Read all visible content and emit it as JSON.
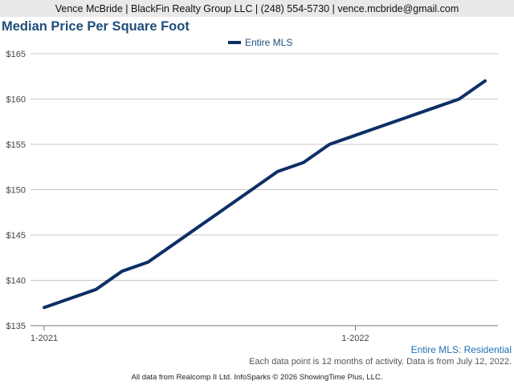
{
  "header": {
    "contact": "Vence McBride | BlackFin Realty Group LLC | (248) 554-5730 | vence.mcbride@gmail.com"
  },
  "chart_data": {
    "type": "line",
    "title": "Median Price Per Square Foot",
    "x": [
      "2021-01",
      "2021-02",
      "2021-03",
      "2021-04",
      "2021-05",
      "2021-06",
      "2021-07",
      "2021-08",
      "2021-09",
      "2021-10",
      "2021-11",
      "2021-12",
      "2022-01",
      "2022-02",
      "2022-03",
      "2022-04",
      "2022-05",
      "2022-06"
    ],
    "series": [
      {
        "name": "Entire MLS",
        "color": "#0d2f66",
        "values": [
          137,
          138,
          139,
          141,
          142,
          144,
          146,
          148,
          150,
          152,
          153,
          155,
          156,
          157,
          158,
          159,
          160,
          162
        ]
      }
    ],
    "x_tick_labels": [
      "1-2021",
      "1-2022"
    ],
    "x_tick_months": [
      "2021-01",
      "2022-01"
    ],
    "y_tick_labels": [
      "$135",
      "$140",
      "$145",
      "$150",
      "$155",
      "$160",
      "$165"
    ],
    "y_ticks": [
      135,
      140,
      145,
      150,
      155,
      160,
      165
    ],
    "ylim": [
      135,
      165
    ],
    "grid": true,
    "legend_position": "top-center"
  },
  "footer": {
    "series_caption": "Entire MLS: Residential",
    "note": "Each data point is 12 months of activity. Data is from July 12, 2022.",
    "source": "All data from Realcomp II Ltd. InfoSparks © 2026 ShowingTime Plus, LLC."
  }
}
